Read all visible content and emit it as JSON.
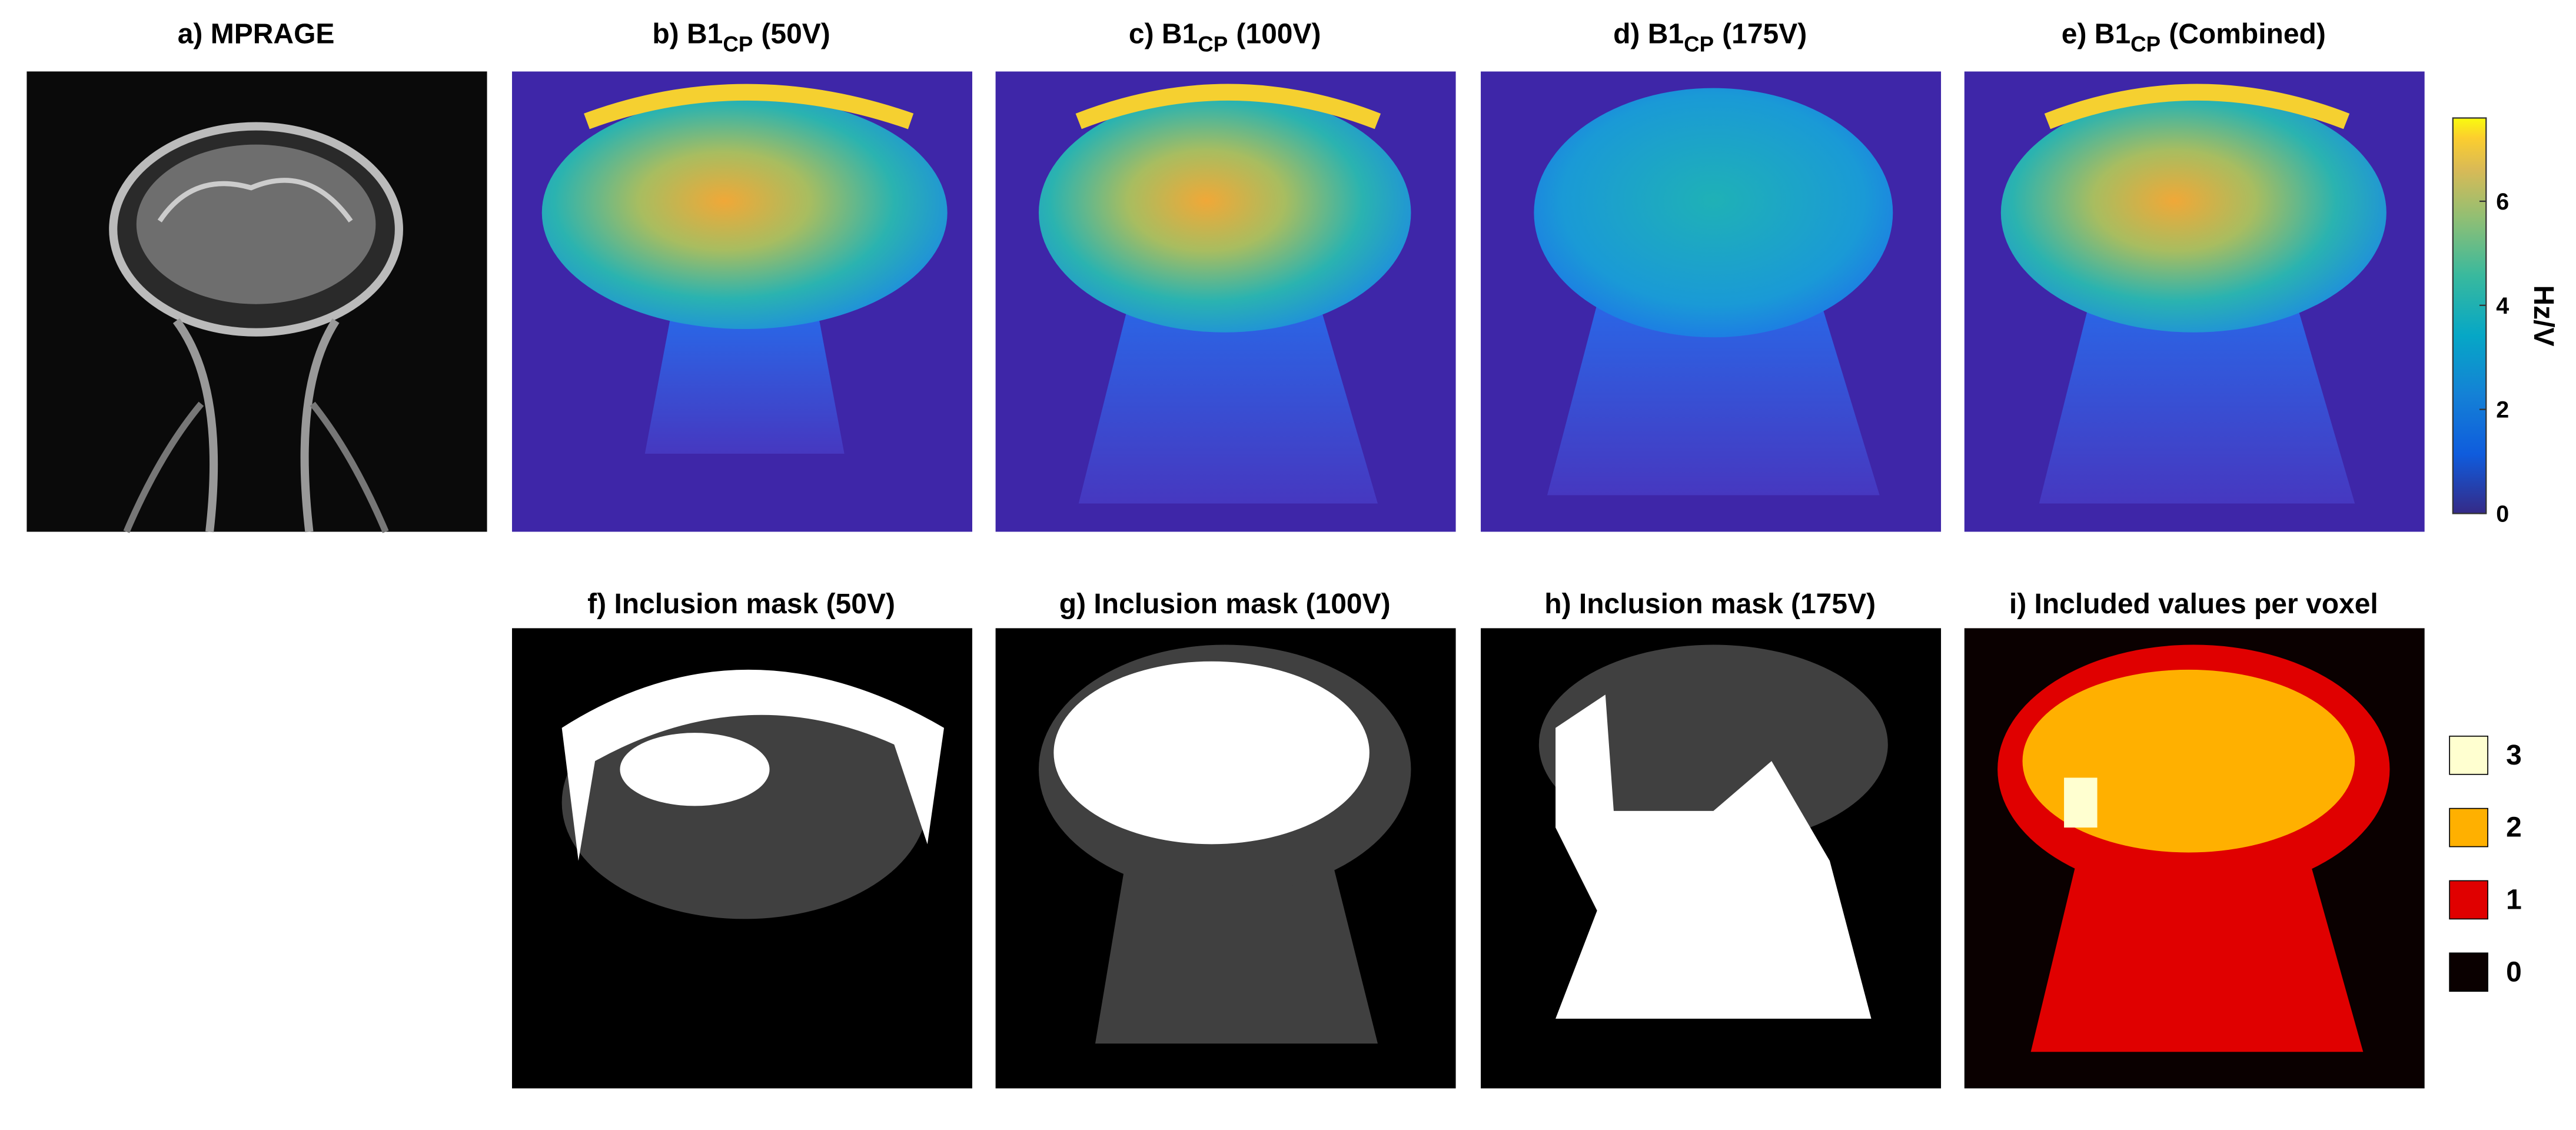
{
  "panels": [
    {
      "title": "a) MPRAGE"
    },
    {
      "title": "b) B1",
      "sub": "CP",
      "suffix": "(50V)"
    },
    {
      "title": "c) B1",
      "sub": "CP",
      "suffix": "(100V)"
    },
    {
      "title": "d) B1",
      "sub": "CP",
      "suffix": "(175V)"
    },
    {
      "title": "e) B1",
      "sub": "CP",
      "suffix": "(Combined)"
    },
    {
      "title": "f) Inclusion mask (50V)"
    },
    {
      "title": "g) Inclusion mask (100V)"
    },
    {
      "title": "h) Inclusion mask (175V)"
    },
    {
      "title": "i) Included values per voxel"
    }
  ],
  "colorbar": {
    "label": "Hz/V",
    "clim": [
      0,
      7.6
    ],
    "ticks": [
      0,
      2,
      4,
      6
    ]
  },
  "legend": [
    {
      "label": 3,
      "color": "#ffffd0"
    },
    {
      "label": 2,
      "color": "#ffb000"
    },
    {
      "label": 1,
      "color": "#e00000"
    },
    {
      "label": 0,
      "color": "#0a0000"
    }
  ]
}
